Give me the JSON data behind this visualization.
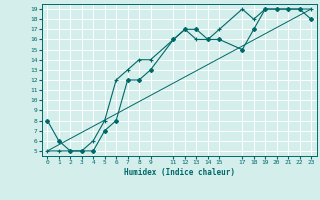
{
  "xlabel": "Humidex (Indice chaleur)",
  "bg_color": "#d4eeec",
  "grid_color": "#ffffff",
  "line_color": "#006868",
  "xlim": [
    -0.5,
    23.5
  ],
  "ylim": [
    4.5,
    19.5
  ],
  "xticks": [
    0,
    1,
    2,
    3,
    4,
    5,
    6,
    7,
    8,
    9,
    11,
    12,
    13,
    14,
    15,
    17,
    18,
    19,
    20,
    21,
    22,
    23
  ],
  "yticks": [
    5,
    6,
    7,
    8,
    9,
    10,
    11,
    12,
    13,
    14,
    15,
    16,
    17,
    18,
    19
  ],
  "line1_x": [
    0,
    1,
    2,
    3,
    4,
    5,
    6,
    7,
    8,
    9,
    11,
    12,
    13,
    14,
    15,
    17,
    18,
    19,
    20,
    21,
    22,
    23
  ],
  "line1_y": [
    8,
    6,
    5,
    5,
    5,
    7,
    8,
    12,
    12,
    13,
    16,
    17,
    17,
    16,
    16,
    15,
    17,
    19,
    19,
    19,
    19,
    18
  ],
  "line2_x": [
    0,
    1,
    2,
    3,
    4,
    5,
    6,
    7,
    8,
    9,
    11,
    12,
    13,
    14,
    15,
    17,
    18,
    19,
    20,
    21,
    22,
    23
  ],
  "line2_y": [
    5,
    5,
    5,
    5,
    6,
    8,
    12,
    13,
    14,
    14,
    16,
    17,
    16,
    16,
    17,
    19,
    18,
    19,
    19,
    19,
    19,
    19
  ],
  "line3_x": [
    0,
    23
  ],
  "line3_y": [
    5,
    19
  ]
}
